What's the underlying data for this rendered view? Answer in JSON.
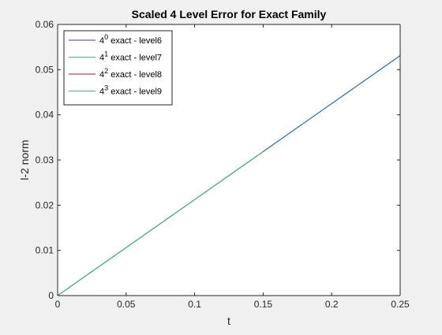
{
  "chart_data": {
    "type": "line",
    "title": "Scaled 4 Level Error for Exact Family",
    "xlabel": "t",
    "ylabel": "l-2 norm",
    "xlim": [
      0,
      0.25
    ],
    "ylim": [
      0,
      0.06
    ],
    "xticks": [
      0,
      0.05,
      0.1,
      0.15,
      0.2,
      0.25
    ],
    "xtick_labels": [
      "0",
      "0.05",
      "0.1",
      "0.15",
      "0.2",
      "0.25"
    ],
    "yticks": [
      0,
      0.01,
      0.02,
      0.03,
      0.04,
      0.05,
      0.06
    ],
    "ytick_labels": [
      "0",
      "0.01",
      "0.02",
      "0.03",
      "0.04",
      "0.05",
      "0.06"
    ],
    "grid": false,
    "legend_position": "top-left",
    "series": [
      {
        "name_base": "4",
        "name_exp": "0",
        "name_rest": " exact - level6",
        "color": "#7e1e8a",
        "x": [
          0,
          0.25
        ],
        "y": [
          0,
          0.0531
        ]
      },
      {
        "name_base": "4",
        "name_exp": "1",
        "name_rest": " exact - level7",
        "color": "#2bbdb5",
        "x": [
          0,
          0.25
        ],
        "y": [
          0,
          0.0531
        ]
      },
      {
        "name_base": "4",
        "name_exp": "2",
        "name_rest": " exact - level8",
        "color": "#a0164a",
        "x": [
          0,
          0.25
        ],
        "y": [
          0,
          0.0531
        ]
      },
      {
        "name_base": "4",
        "name_exp": "3",
        "name_rest": " exact - level9",
        "color": "#3ec878",
        "x": [
          0,
          0.25
        ],
        "y": [
          0,
          0.0531
        ]
      }
    ],
    "overlay_line_color": "#3f73c4"
  }
}
